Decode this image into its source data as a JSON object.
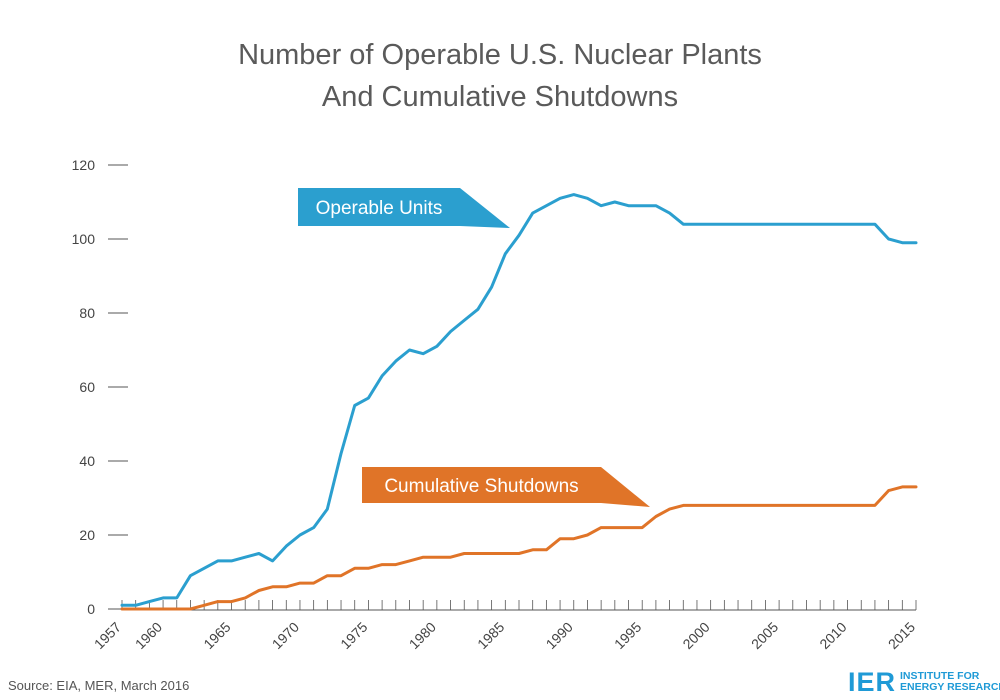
{
  "title_line1": "Number of Operable U.S. Nuclear Plants",
  "title_line2": "And Cumulative Shutdowns",
  "source": "Source: EIA, MER, March 2016",
  "logo": {
    "ier": "IER",
    "line1": "INSTITUTE FOR",
    "line2": "ENERGY RESEARCH"
  },
  "colors": {
    "operable": "#2b9fcf",
    "shutdowns": "#e07428",
    "axis": "#555555",
    "text": "#444444"
  },
  "chart_data": {
    "type": "line",
    "title": "Number of Operable U.S. Nuclear Plants And Cumulative Shutdowns",
    "xlabel": "",
    "ylabel": "",
    "xlim": [
      1957,
      2015
    ],
    "ylim": [
      0,
      120
    ],
    "yticks": [
      0,
      20,
      40,
      60,
      80,
      100,
      120
    ],
    "xticks": [
      1957,
      1960,
      1965,
      1970,
      1975,
      1980,
      1985,
      1990,
      1995,
      2000,
      2005,
      2010,
      2015
    ],
    "x": [
      1957,
      1958,
      1959,
      1960,
      1961,
      1962,
      1963,
      1964,
      1965,
      1966,
      1967,
      1968,
      1969,
      1970,
      1971,
      1972,
      1973,
      1974,
      1975,
      1976,
      1977,
      1978,
      1979,
      1980,
      1981,
      1982,
      1983,
      1984,
      1985,
      1986,
      1987,
      1988,
      1989,
      1990,
      1991,
      1992,
      1993,
      1994,
      1995,
      1996,
      1997,
      1998,
      1999,
      2000,
      2001,
      2002,
      2003,
      2004,
      2005,
      2006,
      2007,
      2008,
      2009,
      2010,
      2011,
      2012,
      2013,
      2014,
      2015
    ],
    "series": [
      {
        "name": "Operable Units",
        "label": "Operable Units",
        "values": [
          1,
          1,
          2,
          3,
          3,
          9,
          11,
          13,
          13,
          14,
          15,
          13,
          17,
          20,
          22,
          27,
          42,
          55,
          57,
          63,
          67,
          70,
          69,
          71,
          75,
          78,
          81,
          87,
          96,
          101,
          107,
          109,
          111,
          112,
          111,
          109,
          110,
          109,
          109,
          109,
          107,
          104,
          104,
          104,
          104,
          104,
          104,
          104,
          104,
          104,
          104,
          104,
          104,
          104,
          104,
          104,
          100,
          99,
          99
        ]
      },
      {
        "name": "Cumulative Shutdowns",
        "label": "Cumulative Shutdowns",
        "values": [
          0,
          0,
          0,
          0,
          0,
          0,
          1,
          2,
          2,
          3,
          5,
          6,
          6,
          7,
          7,
          9,
          9,
          11,
          11,
          12,
          12,
          13,
          14,
          14,
          14,
          15,
          15,
          15,
          15,
          15,
          16,
          16,
          19,
          19,
          20,
          22,
          22,
          22,
          22,
          25,
          27,
          28,
          28,
          28,
          28,
          28,
          28,
          28,
          28,
          28,
          28,
          28,
          28,
          28,
          28,
          28,
          32,
          33,
          33
        ]
      }
    ]
  }
}
